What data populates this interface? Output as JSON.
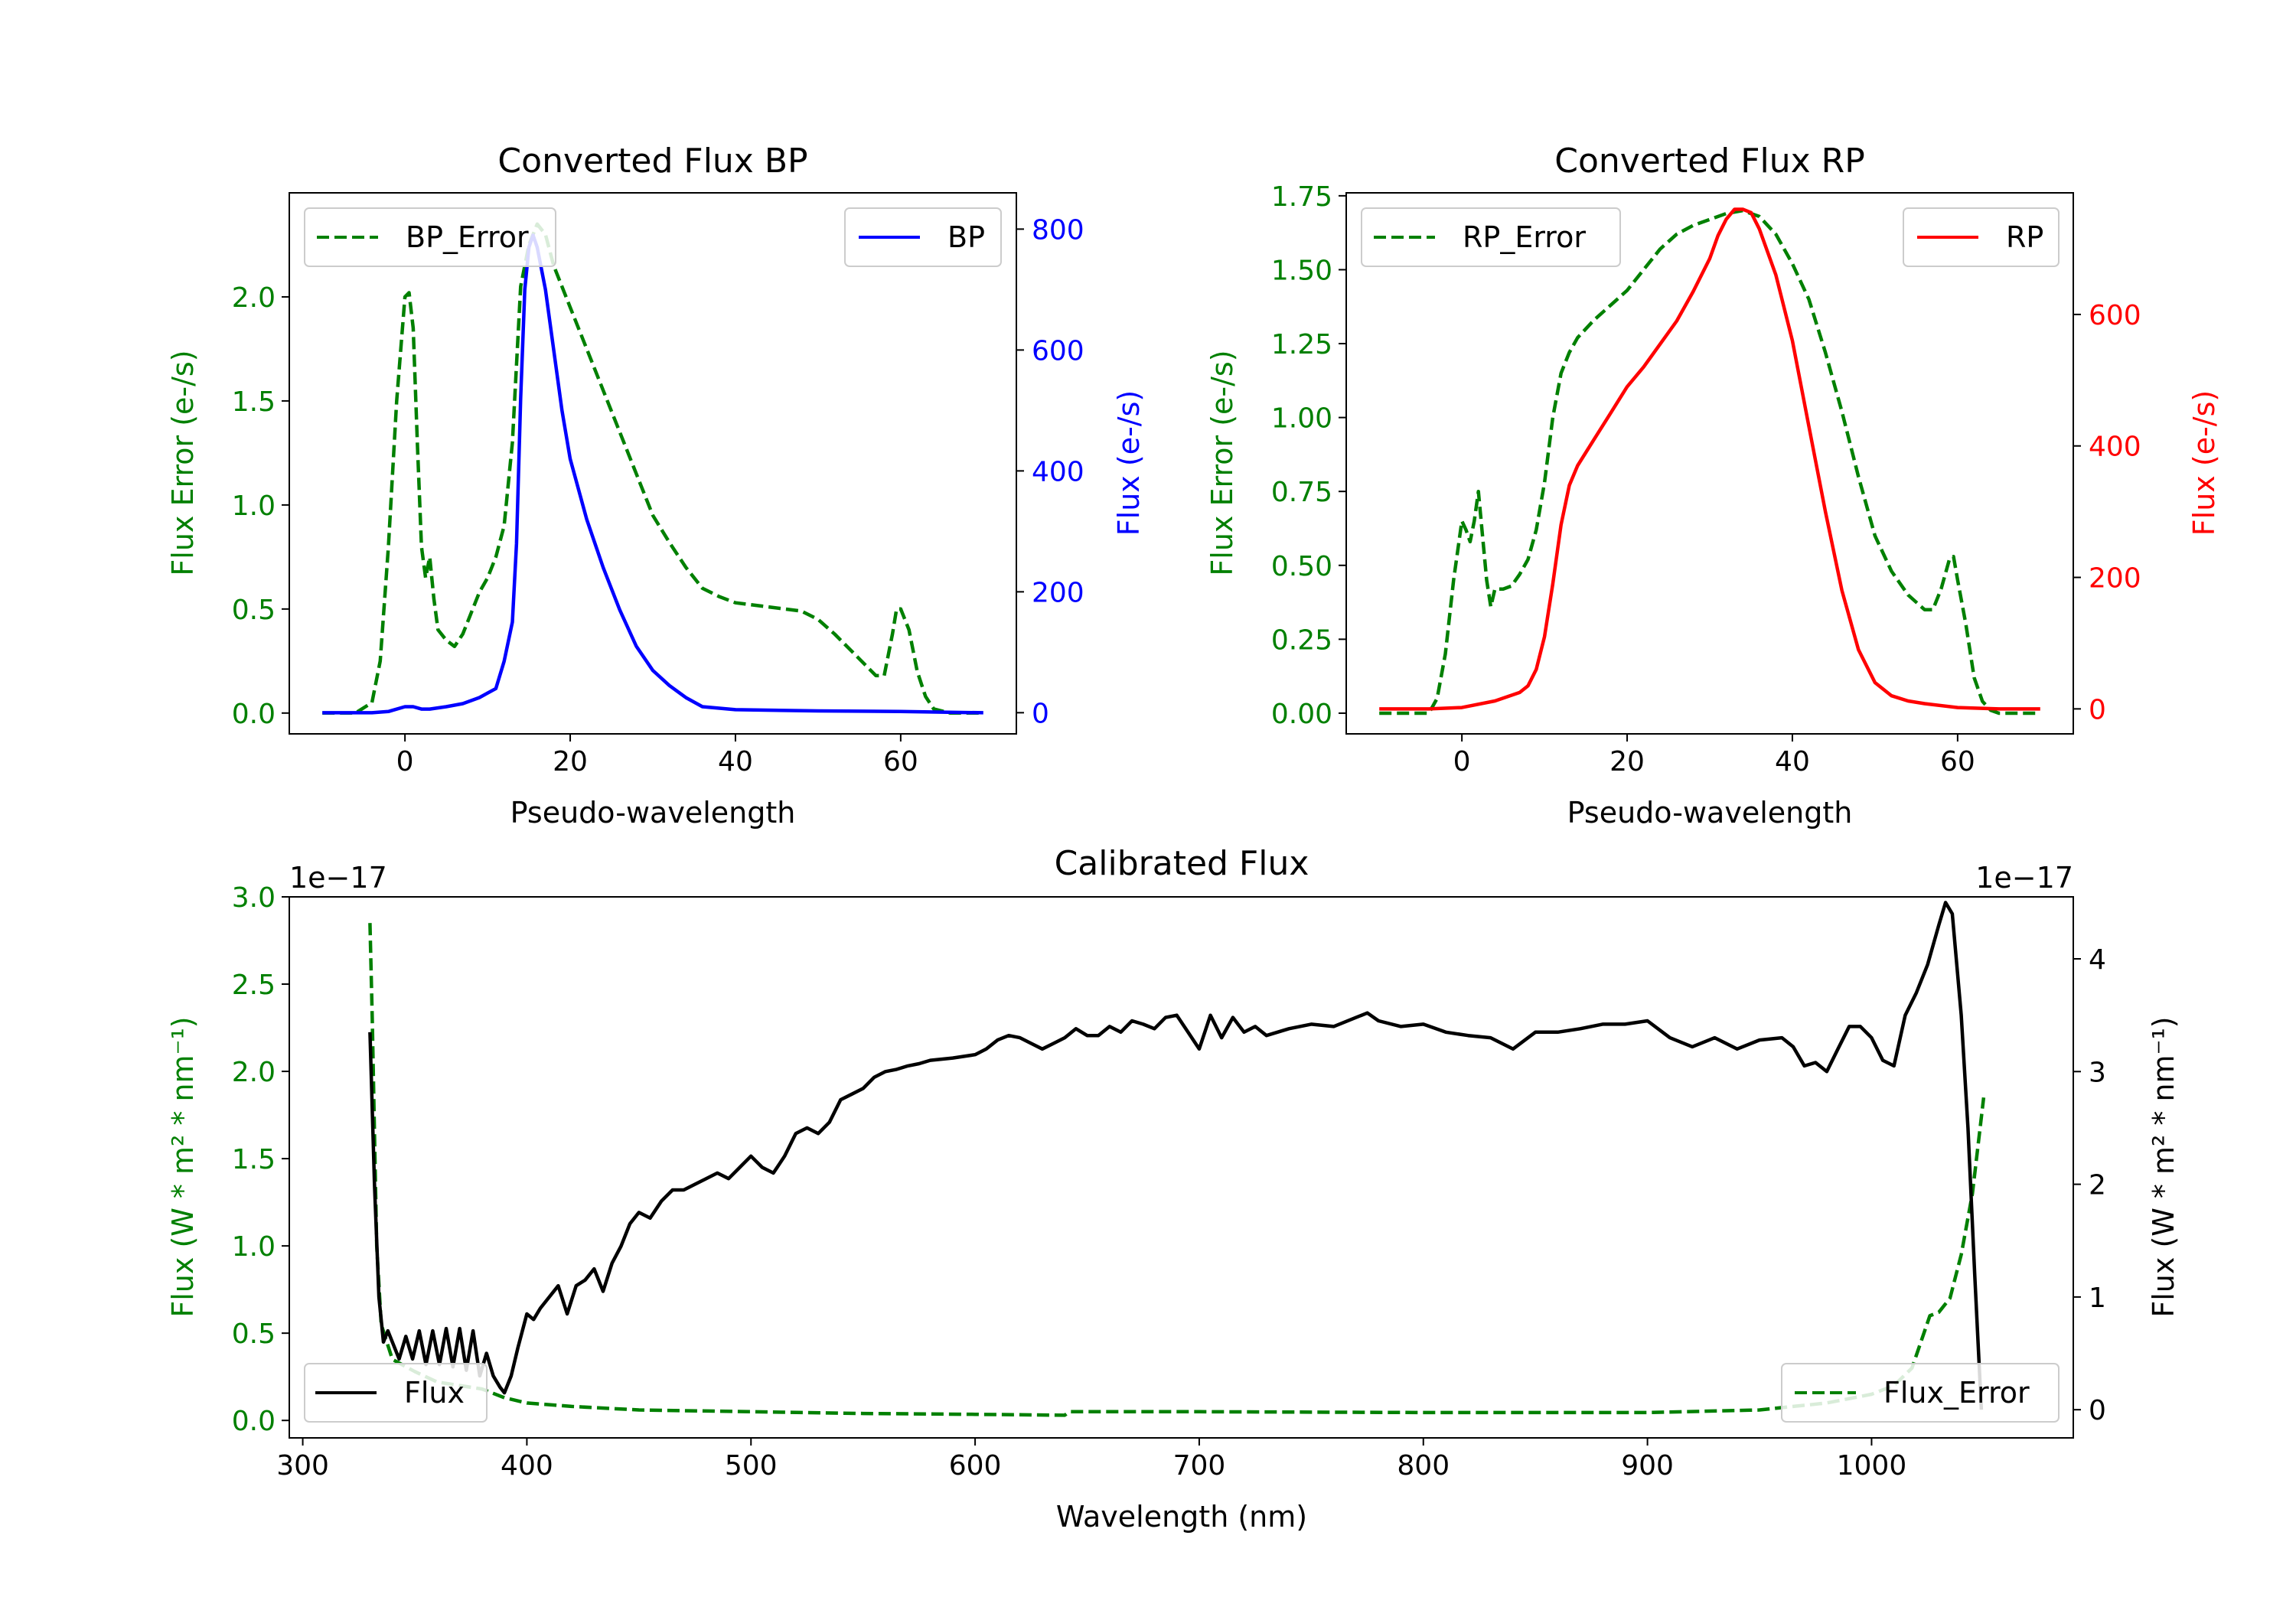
{
  "colors": {
    "bp": "#0000ff",
    "rp": "#ff0000",
    "error": "#008000",
    "flux": "#000000",
    "axis": "#000000"
  },
  "chart_data": [
    {
      "id": "bp",
      "type": "line",
      "title": "Converted Flux BP",
      "xlabel": "Pseudo-wavelength",
      "ylabel_left": "Flux Error (e-/s)",
      "ylabel_right": "Flux (e-/s)",
      "xlim": [
        -14,
        74
      ],
      "ylim_left": [
        -0.1,
        2.5
      ],
      "ylim_right": [
        -35,
        860
      ],
      "xticks": [
        0,
        20,
        40,
        60
      ],
      "yticks_left": [
        "0.0",
        "0.5",
        "1.0",
        "1.5",
        "2.0"
      ],
      "yticks_right": [
        "0",
        "200",
        "400",
        "600",
        "800"
      ],
      "legend_left": "BP_Error",
      "legend_right": "BP",
      "series": [
        {
          "name": "BP_Error",
          "axis": "left",
          "style": "dashed",
          "color": "#008000",
          "x": [
            -10,
            -6,
            -4,
            -3,
            -2,
            -1,
            0,
            0.5,
            1,
            1.5,
            2,
            2.5,
            3,
            3.5,
            4,
            5,
            6,
            7,
            8,
            9,
            10,
            11,
            12,
            13,
            14,
            15,
            16,
            17,
            18,
            20,
            22,
            24,
            26,
            28,
            30,
            32,
            34,
            36,
            38,
            40,
            44,
            48,
            50,
            52,
            54,
            56,
            57,
            58,
            59,
            59.5,
            60,
            61,
            62,
            63,
            64,
            66,
            68,
            70
          ],
          "y": [
            0.0,
            0.0,
            0.05,
            0.25,
            0.8,
            1.5,
            2.0,
            2.02,
            1.85,
            1.3,
            0.8,
            0.65,
            0.75,
            0.55,
            0.4,
            0.35,
            0.32,
            0.38,
            0.48,
            0.58,
            0.65,
            0.75,
            0.9,
            1.3,
            2.05,
            2.25,
            2.35,
            2.3,
            2.15,
            1.95,
            1.75,
            1.55,
            1.35,
            1.15,
            0.95,
            0.82,
            0.7,
            0.6,
            0.56,
            0.53,
            0.51,
            0.49,
            0.45,
            0.38,
            0.3,
            0.22,
            0.18,
            0.18,
            0.38,
            0.5,
            0.5,
            0.4,
            0.2,
            0.08,
            0.02,
            0.0,
            0.0,
            0.0
          ]
        },
        {
          "name": "BP",
          "axis": "right",
          "style": "solid",
          "color": "#0000ff",
          "x": [
            -10,
            -4,
            -2,
            0,
            1,
            2,
            3,
            5,
            7,
            9,
            11,
            12,
            13,
            13.5,
            14,
            14.5,
            15,
            15.5,
            16,
            17,
            18,
            19,
            20,
            22,
            24,
            26,
            28,
            30,
            32,
            34,
            36,
            40,
            50,
            60,
            65,
            70
          ],
          "y": [
            0,
            0,
            2,
            10,
            10,
            6,
            6,
            10,
            15,
            25,
            40,
            85,
            150,
            280,
            520,
            700,
            770,
            790,
            770,
            700,
            600,
            500,
            420,
            320,
            240,
            170,
            110,
            70,
            45,
            25,
            10,
            5,
            3,
            2,
            1,
            0
          ]
        }
      ]
    },
    {
      "id": "rp",
      "type": "line",
      "title": "Converted Flux RP",
      "xlabel": "Pseudo-wavelength",
      "ylabel_left": "Flux Error (e-/s)",
      "ylabel_right": "Flux (e-/s)",
      "xlim": [
        -14,
        74
      ],
      "ylim_left": [
        -0.07,
        1.76
      ],
      "ylim_right": [
        -38,
        785
      ],
      "xticks": [
        0,
        20,
        40,
        60
      ],
      "yticks_left": [
        "0.00",
        "0.25",
        "0.50",
        "0.75",
        "1.00",
        "1.25",
        "1.50",
        "1.75"
      ],
      "yticks_right": [
        "0",
        "200",
        "400",
        "600"
      ],
      "legend_left": "RP_Error",
      "legend_right": "RP",
      "series": [
        {
          "name": "RP_Error",
          "axis": "left",
          "style": "dashed",
          "color": "#008000",
          "x": [
            -10,
            -4,
            -3,
            -2,
            -1,
            0,
            0.5,
            1,
            1.5,
            2,
            2.5,
            3,
            3.5,
            4,
            5,
            6,
            7,
            8,
            9,
            10,
            11,
            12,
            13,
            14,
            16,
            18,
            20,
            22,
            24,
            26,
            28,
            30,
            32,
            34,
            36,
            38,
            40,
            42,
            44,
            46,
            48,
            50,
            52,
            54,
            56,
            57,
            58,
            59,
            59.5,
            60,
            61,
            62,
            63,
            64,
            65,
            70
          ],
          "y": [
            0.0,
            0.0,
            0.05,
            0.2,
            0.45,
            0.65,
            0.62,
            0.58,
            0.65,
            0.75,
            0.6,
            0.45,
            0.36,
            0.42,
            0.42,
            0.43,
            0.47,
            0.52,
            0.62,
            0.78,
            1.0,
            1.15,
            1.22,
            1.27,
            1.33,
            1.38,
            1.43,
            1.5,
            1.57,
            1.62,
            1.65,
            1.67,
            1.69,
            1.7,
            1.68,
            1.62,
            1.52,
            1.4,
            1.22,
            1.02,
            0.8,
            0.6,
            0.48,
            0.4,
            0.35,
            0.35,
            0.42,
            0.52,
            0.53,
            0.45,
            0.3,
            0.12,
            0.04,
            0.01,
            0.0,
            0.0
          ]
        },
        {
          "name": "RP",
          "axis": "right",
          "style": "solid",
          "color": "#ff0000",
          "x": [
            -10,
            -4,
            0,
            4,
            7,
            8,
            9,
            10,
            11,
            12,
            13,
            14,
            16,
            18,
            20,
            22,
            24,
            26,
            28,
            30,
            31,
            32,
            33,
            34,
            35,
            36,
            38,
            40,
            42,
            44,
            46,
            48,
            50,
            52,
            54,
            56,
            60,
            65,
            70
          ],
          "y": [
            0,
            0,
            2,
            12,
            25,
            35,
            60,
            110,
            190,
            280,
            340,
            370,
            410,
            450,
            490,
            520,
            555,
            590,
            635,
            685,
            720,
            745,
            760,
            760,
            755,
            730,
            660,
            560,
            430,
            300,
            180,
            90,
            40,
            20,
            12,
            8,
            2,
            0,
            0
          ]
        }
      ]
    },
    {
      "id": "calibrated",
      "type": "line",
      "title": "Calibrated Flux",
      "xlabel": "Wavelength (nm)",
      "ylabel_left": "Flux (W * m² * nm⁻¹)",
      "ylabel_right": "Flux (W * m² * nm⁻¹)",
      "offset_left": "1e−17",
      "offset_right": "1e−17",
      "xlim": [
        294,
        1090
      ],
      "ylim_left": [
        -0.1,
        3.0
      ],
      "ylim_right": [
        -0.25,
        4.55
      ],
      "xticks": [
        300,
        400,
        500,
        600,
        700,
        800,
        900,
        1000
      ],
      "yticks_left": [
        "0.0",
        "0.5",
        "1.0",
        "1.5",
        "2.0",
        "2.5",
        "3.0"
      ],
      "yticks_right": [
        "0",
        "1",
        "2",
        "3",
        "4"
      ],
      "legend_left": "Flux",
      "legend_right": "Flux_Error",
      "series": [
        {
          "name": "Flux_Error",
          "axis": "left",
          "style": "dashed",
          "color": "#008000",
          "x": [
            330,
            331,
            333,
            335,
            340,
            350,
            360,
            370,
            380,
            390,
            400,
            420,
            450,
            500,
            550,
            600,
            640,
            642,
            700,
            800,
            900,
            950,
            980,
            1000,
            1010,
            1018,
            1022,
            1026,
            1030,
            1035,
            1040,
            1045,
            1050
          ],
          "y": [
            2.85,
            2.3,
            1.0,
            0.55,
            0.35,
            0.28,
            0.22,
            0.2,
            0.18,
            0.13,
            0.1,
            0.08,
            0.06,
            0.05,
            0.04,
            0.035,
            0.03,
            0.05,
            0.05,
            0.045,
            0.045,
            0.06,
            0.1,
            0.15,
            0.2,
            0.3,
            0.45,
            0.6,
            0.62,
            0.7,
            0.95,
            1.3,
            1.85
          ]
        },
        {
          "name": "Flux",
          "axis": "right",
          "style": "solid",
          "color": "#000000",
          "x": [
            330,
            332,
            334,
            336,
            338,
            340,
            343,
            346,
            349,
            352,
            355,
            358,
            361,
            364,
            367,
            370,
            373,
            376,
            379,
            382,
            385,
            388,
            390,
            393,
            396,
            400,
            403,
            406,
            410,
            414,
            418,
            422,
            426,
            430,
            434,
            438,
            442,
            446,
            450,
            455,
            460,
            465,
            470,
            475,
            480,
            485,
            490,
            495,
            500,
            505,
            510,
            515,
            520,
            525,
            530,
            535,
            540,
            545,
            550,
            555,
            560,
            565,
            570,
            575,
            580,
            590,
            600,
            605,
            610,
            615,
            620,
            625,
            630,
            635,
            640,
            645,
            650,
            655,
            660,
            665,
            670,
            675,
            680,
            685,
            690,
            695,
            700,
            705,
            710,
            715,
            720,
            725,
            730,
            740,
            750,
            760,
            770,
            775,
            780,
            790,
            800,
            810,
            820,
            830,
            840,
            850,
            860,
            870,
            880,
            890,
            900,
            910,
            920,
            930,
            940,
            950,
            960,
            965,
            970,
            975,
            980,
            985,
            990,
            995,
            1000,
            1005,
            1010,
            1015,
            1020,
            1025,
            1030,
            1033,
            1036,
            1040,
            1043,
            1046,
            1049
          ],
          "y": [
            3.35,
            2.0,
            1.0,
            0.6,
            0.7,
            0.6,
            0.45,
            0.65,
            0.45,
            0.7,
            0.4,
            0.7,
            0.4,
            0.72,
            0.38,
            0.72,
            0.35,
            0.7,
            0.3,
            0.5,
            0.3,
            0.2,
            0.15,
            0.3,
            0.55,
            0.85,
            0.8,
            0.9,
            1.0,
            1.1,
            0.85,
            1.1,
            1.15,
            1.25,
            1.05,
            1.3,
            1.45,
            1.65,
            1.75,
            1.7,
            1.85,
            1.95,
            1.95,
            2.0,
            2.05,
            2.1,
            2.05,
            2.15,
            2.25,
            2.15,
            2.1,
            2.25,
            2.45,
            2.5,
            2.45,
            2.55,
            2.75,
            2.8,
            2.85,
            2.95,
            3.0,
            3.02,
            3.05,
            3.07,
            3.1,
            3.12,
            3.15,
            3.2,
            3.28,
            3.32,
            3.3,
            3.25,
            3.2,
            3.25,
            3.3,
            3.38,
            3.32,
            3.32,
            3.4,
            3.35,
            3.45,
            3.42,
            3.38,
            3.48,
            3.5,
            3.35,
            3.2,
            3.5,
            3.3,
            3.48,
            3.35,
            3.4,
            3.32,
            3.38,
            3.42,
            3.4,
            3.48,
            3.52,
            3.45,
            3.4,
            3.42,
            3.35,
            3.32,
            3.3,
            3.2,
            3.35,
            3.35,
            3.38,
            3.42,
            3.42,
            3.45,
            3.3,
            3.22,
            3.3,
            3.2,
            3.28,
            3.3,
            3.22,
            3.05,
            3.08,
            3.0,
            3.2,
            3.4,
            3.4,
            3.3,
            3.1,
            3.05,
            3.5,
            3.7,
            3.95,
            4.3,
            4.5,
            4.4,
            3.5,
            2.5,
            1.2,
            0.0
          ]
        }
      ]
    }
  ]
}
